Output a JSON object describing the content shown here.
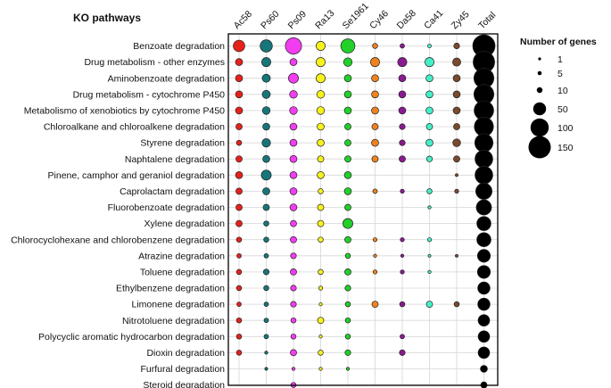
{
  "chart_data": {
    "type": "bubble-matrix",
    "title": "KO pathways",
    "columns": [
      "Ac58",
      "Ps60",
      "Ps09",
      "Ra13",
      "Se1961",
      "Cy46",
      "Da58",
      "Ca41",
      "Zy45",
      "Total"
    ],
    "column_colors": [
      "#e8201a",
      "#17767a",
      "#f23cf0",
      "#f7f21a",
      "#22d02a",
      "#f0821e",
      "#8a1a92",
      "#44f0c8",
      "#7a4a2c",
      "#000000"
    ],
    "rows": [
      "Benzoate degradation",
      "Drug metabolism - other enzymes",
      "Aminobenzoate degradation",
      "Drug metabolism - cytochrome P450",
      "Metabolismo of xenobiotics by cytochrome P450",
      "Chloroalkane and chloroalkene degradation",
      "Styrene degradation",
      "Naphtalene degradation",
      "Pinene, camphor and geraniol degradation",
      "Caprolactam degradation",
      "Fluorobenzoate degradation",
      "Xylene degradation",
      "Chlorocyclohexane and chlorobenzene degradation",
      "Atrazine degradation",
      "Toluene degradation",
      "Ethylbenzene degradation",
      "Limonene degradation",
      "Nitrotoluene degradation",
      "Polycyclic aromatic hydrocarbon degradation",
      "Dioxin degradation",
      "Furfural degradation",
      "Steroid degradation"
    ],
    "values": [
      [
        40,
        45,
        80,
        25,
        60,
        8,
        6,
        4,
        10,
        150
      ],
      [
        15,
        25,
        15,
        25,
        22,
        25,
        25,
        25,
        20,
        140
      ],
      [
        15,
        20,
        30,
        25,
        15,
        15,
        15,
        15,
        15,
        120
      ],
      [
        15,
        20,
        18,
        18,
        15,
        15,
        15,
        15,
        15,
        120
      ],
      [
        15,
        18,
        18,
        18,
        15,
        15,
        15,
        15,
        15,
        115
      ],
      [
        12,
        15,
        15,
        15,
        12,
        12,
        10,
        12,
        12,
        110
      ],
      [
        8,
        22,
        15,
        15,
        12,
        15,
        10,
        15,
        18,
        100
      ],
      [
        12,
        15,
        15,
        12,
        12,
        12,
        12,
        10,
        12,
        95
      ],
      [
        15,
        30,
        15,
        15,
        15,
        0,
        0,
        0,
        2,
        95
      ],
      [
        12,
        15,
        15,
        8,
        15,
        6,
        5,
        8,
        5,
        80
      ],
      [
        12,
        12,
        15,
        12,
        12,
        0,
        0,
        3,
        0,
        70
      ],
      [
        12,
        8,
        12,
        12,
        30,
        0,
        0,
        0,
        0,
        60
      ],
      [
        8,
        8,
        12,
        8,
        12,
        5,
        5,
        5,
        0,
        60
      ],
      [
        6,
        6,
        10,
        0,
        8,
        3,
        3,
        2,
        2,
        50
      ],
      [
        8,
        10,
        12,
        8,
        12,
        5,
        5,
        3,
        0,
        50
      ],
      [
        8,
        8,
        10,
        5,
        10,
        0,
        0,
        0,
        0,
        45
      ],
      [
        6,
        6,
        10,
        3,
        8,
        12,
        8,
        12,
        8,
        45
      ],
      [
        8,
        6,
        8,
        12,
        8,
        0,
        0,
        0,
        0,
        40
      ],
      [
        8,
        6,
        8,
        3,
        8,
        0,
        6,
        0,
        0,
        40
      ],
      [
        8,
        3,
        12,
        8,
        10,
        0,
        10,
        0,
        0,
        40
      ],
      [
        0,
        2,
        3,
        3,
        3,
        0,
        0,
        0,
        0,
        15
      ],
      [
        0,
        0,
        8,
        0,
        0,
        0,
        0,
        0,
        0,
        12
      ]
    ],
    "legend": {
      "title": "Number of genes",
      "sizes": [
        1,
        5,
        10,
        50,
        100,
        150
      ],
      "labels": [
        "1",
        "5",
        "10",
        "50",
        "100",
        "150"
      ]
    }
  }
}
